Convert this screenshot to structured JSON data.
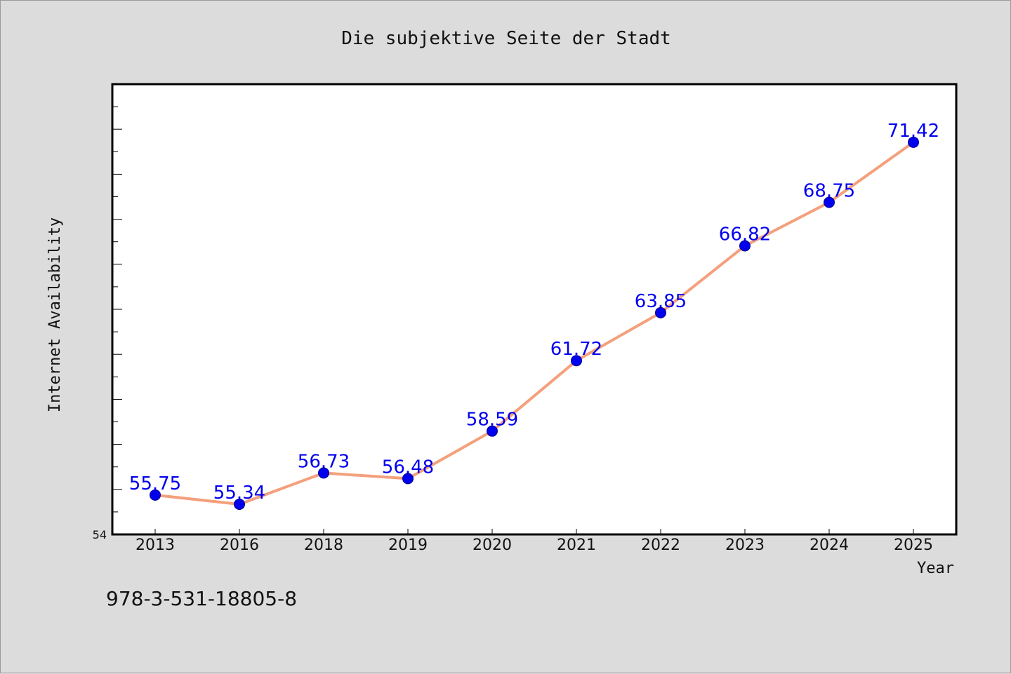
{
  "chart_data": {
    "type": "line",
    "title": "Die subjektive Seite der Stadt",
    "xlabel": "Year",
    "ylabel": "Internet Availability",
    "categories": [
      "2013",
      "2016",
      "2018",
      "2019",
      "2020",
      "2021",
      "2022",
      "2023",
      "2024",
      "2025"
    ],
    "series": [
      {
        "values": [
          55.75,
          55.34,
          56.73,
          56.48,
          58.59,
          61.72,
          63.85,
          66.82,
          68.75,
          71.42
        ],
        "labels": [
          "55.75",
          "55.34",
          "56.73",
          "56.48",
          "58.59",
          "61.72",
          "63.85",
          "66.82",
          "68.75",
          "71.42"
        ]
      }
    ],
    "ylim": [
      54,
      74
    ],
    "y_tick_labels": [
      "54"
    ],
    "grid": false,
    "legend": "none",
    "line_color": "#f4a07c",
    "marker_color": "#0000ee",
    "label_color": "#0000ee"
  },
  "footer": {
    "isbn": "978-3-531-18805-8"
  }
}
